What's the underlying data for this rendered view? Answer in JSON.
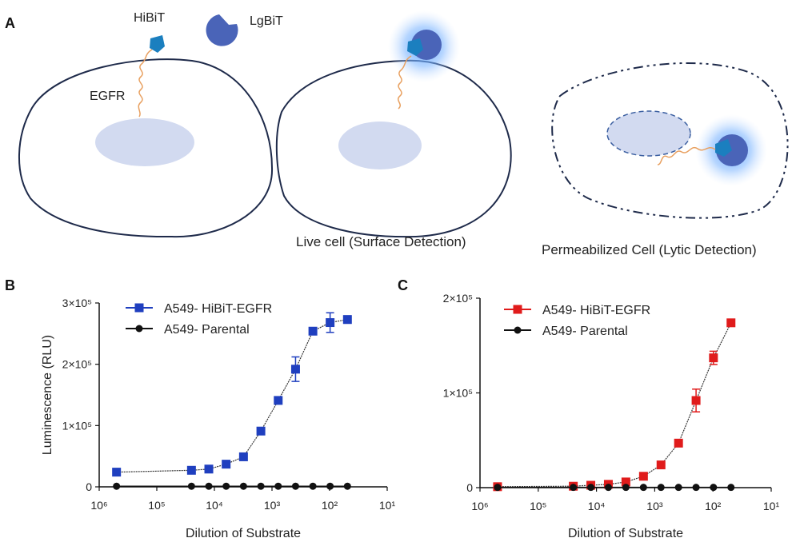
{
  "panels": {
    "a": {
      "letter": "A",
      "labels": {
        "hibit": "HiBiT",
        "lgbit": "LgBiT",
        "egfr": "EGFR"
      },
      "captions": {
        "live": "Live cell (Surface Detection)",
        "permeabilized": "Permeabilized Cell (Lytic Detection)"
      },
      "colors": {
        "membrane": "#1e2a4a",
        "nucleus": "#d2daf0",
        "hibit": "#1b7fbf",
        "lgbit": "#4a64b8",
        "glow": "#5aa0ff",
        "egfr": "#e8a060"
      }
    },
    "b": {
      "letter": "B"
    },
    "c": {
      "letter": "C"
    }
  },
  "chart_data": [
    {
      "type": "scatter",
      "panel": "B",
      "xscale": "log",
      "xlabel": "Dilution of Substrate",
      "ylabel": "Luminescence (RLU)",
      "xlim": [
        1000000,
        10
      ],
      "ylim": [
        0,
        300000
      ],
      "xticks": [
        1000000,
        100000,
        10000,
        1000,
        100,
        10
      ],
      "xtick_labels": [
        "10⁶",
        "10⁵",
        "10⁴",
        "10³",
        "10²",
        "10¹"
      ],
      "yticks": [
        0,
        100000,
        200000,
        300000
      ],
      "ytick_labels": [
        "0",
        "1×10⁵",
        "2×10⁵",
        "3×10⁵"
      ],
      "fit_curve": true,
      "legend_position": "top-left",
      "series": [
        {
          "name": "A549- HiBiT-EGFR",
          "marker": "square",
          "color": "#1f3fbf",
          "x": [
            500000,
            25000,
            12500,
            6250,
            3125,
            1560,
            780,
            390,
            195,
            98,
            49
          ],
          "y": [
            24000,
            27000,
            29000,
            37000,
            49000,
            91000,
            141000,
            192000,
            254000,
            268000,
            273000
          ],
          "err": [
            0,
            0,
            0,
            0,
            0,
            4000,
            4000,
            20000,
            4000,
            16000,
            6000
          ]
        },
        {
          "name": "A549- Parental",
          "marker": "circle",
          "color": "#111111",
          "x": [
            500000,
            25000,
            12500,
            6250,
            3125,
            1560,
            780,
            390,
            195,
            98,
            49
          ],
          "y": [
            1000,
            1000,
            1000,
            1000,
            1000,
            1000,
            1000,
            1000,
            1000,
            1000,
            1000
          ],
          "err": [
            0,
            0,
            0,
            0,
            0,
            0,
            0,
            0,
            0,
            0,
            0
          ]
        }
      ]
    },
    {
      "type": "scatter",
      "panel": "C",
      "xscale": "log",
      "xlabel": "Dilution of Substrate",
      "ylabel": "",
      "xlim": [
        1000000,
        10
      ],
      "ylim": [
        0,
        200000
      ],
      "xticks": [
        1000000,
        100000,
        10000,
        1000,
        100,
        10
      ],
      "xtick_labels": [
        "10⁶",
        "10⁵",
        "10⁴",
        "10³",
        "10²",
        "10¹"
      ],
      "yticks": [
        0,
        100000,
        200000
      ],
      "ytick_labels": [
        "0",
        "1×10⁵",
        "2×10⁵"
      ],
      "fit_curve": true,
      "legend_position": "top-left",
      "series": [
        {
          "name": "A549- HiBiT-EGFR",
          "marker": "square",
          "color": "#e01b1b",
          "x": [
            500000,
            25000,
            12500,
            6250,
            3125,
            1560,
            780,
            390,
            195,
            98,
            49
          ],
          "y": [
            1000,
            1500,
            2500,
            3500,
            6000,
            12000,
            24000,
            47000,
            92000,
            137000,
            174000
          ],
          "err": [
            0,
            0,
            0,
            0,
            0,
            0,
            0,
            0,
            12000,
            7000,
            3000
          ]
        },
        {
          "name": "A549- Parental",
          "marker": "circle",
          "color": "#111111",
          "x": [
            500000,
            25000,
            12500,
            6250,
            3125,
            1560,
            780,
            390,
            195,
            98,
            49
          ],
          "y": [
            300,
            300,
            300,
            300,
            300,
            300,
            300,
            300,
            300,
            300,
            300
          ],
          "err": [
            0,
            0,
            0,
            0,
            0,
            0,
            0,
            0,
            0,
            0,
            0
          ]
        }
      ]
    }
  ]
}
